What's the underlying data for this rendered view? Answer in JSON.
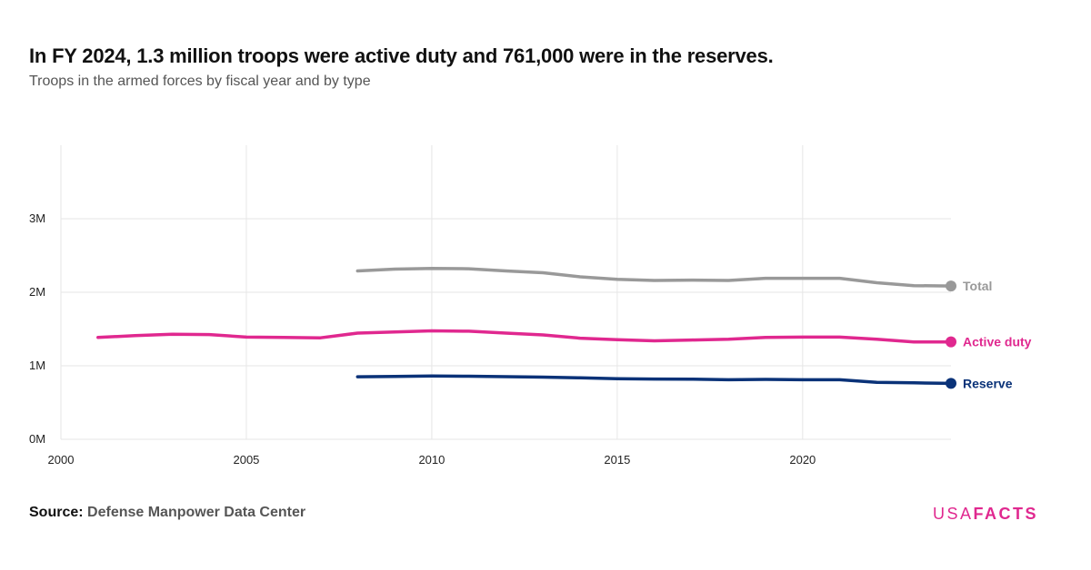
{
  "header": {
    "title": "In FY 2024, 1.3 million troops were active duty and 761,000 were in the reserves.",
    "subtitle": "Troops in the armed forces by fiscal year and by type"
  },
  "footer": {
    "source_label": "Source:",
    "source_value": "Defense Manpower Data Center",
    "logo_regular": "USA",
    "logo_bold": "FACTS"
  },
  "colors": {
    "total": "#999999",
    "active": "#e0288f",
    "reserve": "#0a3278",
    "grid": "#e6e6e6",
    "logo": "#e0288f"
  },
  "chart_data": {
    "type": "line",
    "title": "In FY 2024, 1.3 million troops were active duty and 761,000 were in the reserves.",
    "subtitle": "Troops in the armed forces by fiscal year and by type",
    "xlim": [
      2000,
      2024
    ],
    "ylim": [
      0,
      4000000
    ],
    "x_ticks": [
      2000,
      2005,
      2010,
      2015,
      2020
    ],
    "x_tick_labels": [
      "2000",
      "2005",
      "2010",
      "2015",
      "2020"
    ],
    "y_ticks": [
      0,
      1000000,
      2000000,
      3000000
    ],
    "y_tick_labels": [
      "0M",
      "1M",
      "2M",
      "3M"
    ],
    "grid": true,
    "legend": "end-of-line labels",
    "series": [
      {
        "name": "Total",
        "color": "#999999",
        "x": [
          2008,
          2009,
          2010,
          2011,
          2012,
          2013,
          2014,
          2015,
          2016,
          2017,
          2018,
          2019,
          2020,
          2021,
          2022,
          2023,
          2024
        ],
        "values": [
          2290000,
          2315000,
          2325000,
          2320000,
          2290000,
          2265000,
          2210000,
          2175000,
          2160000,
          2165000,
          2160000,
          2190000,
          2190000,
          2190000,
          2130000,
          2090000,
          2085000
        ]
      },
      {
        "name": "Active duty",
        "color": "#e0288f",
        "x": [
          2001,
          2002,
          2003,
          2004,
          2005,
          2006,
          2007,
          2008,
          2009,
          2010,
          2011,
          2012,
          2013,
          2014,
          2015,
          2016,
          2017,
          2018,
          2019,
          2020,
          2021,
          2022,
          2023,
          2024
        ],
        "values": [
          1385000,
          1410000,
          1430000,
          1425000,
          1390000,
          1385000,
          1380000,
          1445000,
          1460000,
          1475000,
          1470000,
          1445000,
          1420000,
          1375000,
          1355000,
          1340000,
          1350000,
          1360000,
          1385000,
          1390000,
          1390000,
          1360000,
          1325000,
          1325000
        ]
      },
      {
        "name": "Reserve",
        "color": "#0a3278",
        "x": [
          2008,
          2009,
          2010,
          2011,
          2012,
          2013,
          2014,
          2015,
          2016,
          2017,
          2018,
          2019,
          2020,
          2021,
          2022,
          2023,
          2024
        ],
        "values": [
          850000,
          856000,
          861000,
          858000,
          852000,
          846000,
          836000,
          823000,
          820000,
          818000,
          810000,
          815000,
          810000,
          810000,
          775000,
          768000,
          761000
        ]
      }
    ]
  }
}
